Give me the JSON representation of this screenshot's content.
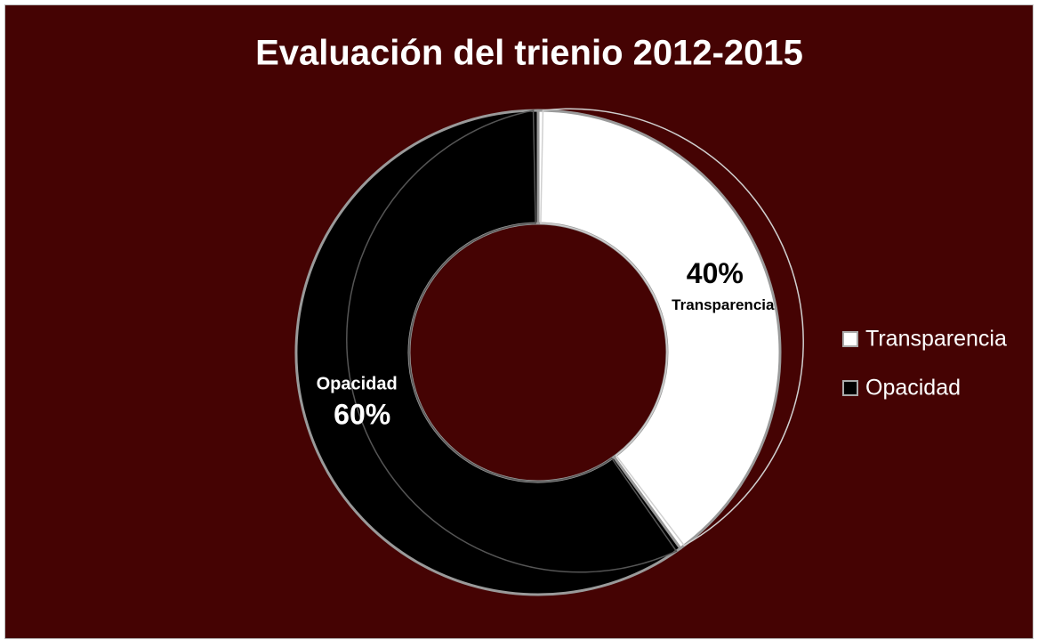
{
  "chart_data": {
    "type": "donut",
    "title": "Evaluación del trienio 2012-2015",
    "categories": [
      "Transparencia",
      "Opacidad"
    ],
    "values": [
      40,
      60
    ],
    "value_labels": [
      "40%",
      "60%"
    ],
    "colors": [
      "#ffffff",
      "#000000"
    ],
    "background": "#450303",
    "legend": "right"
  }
}
